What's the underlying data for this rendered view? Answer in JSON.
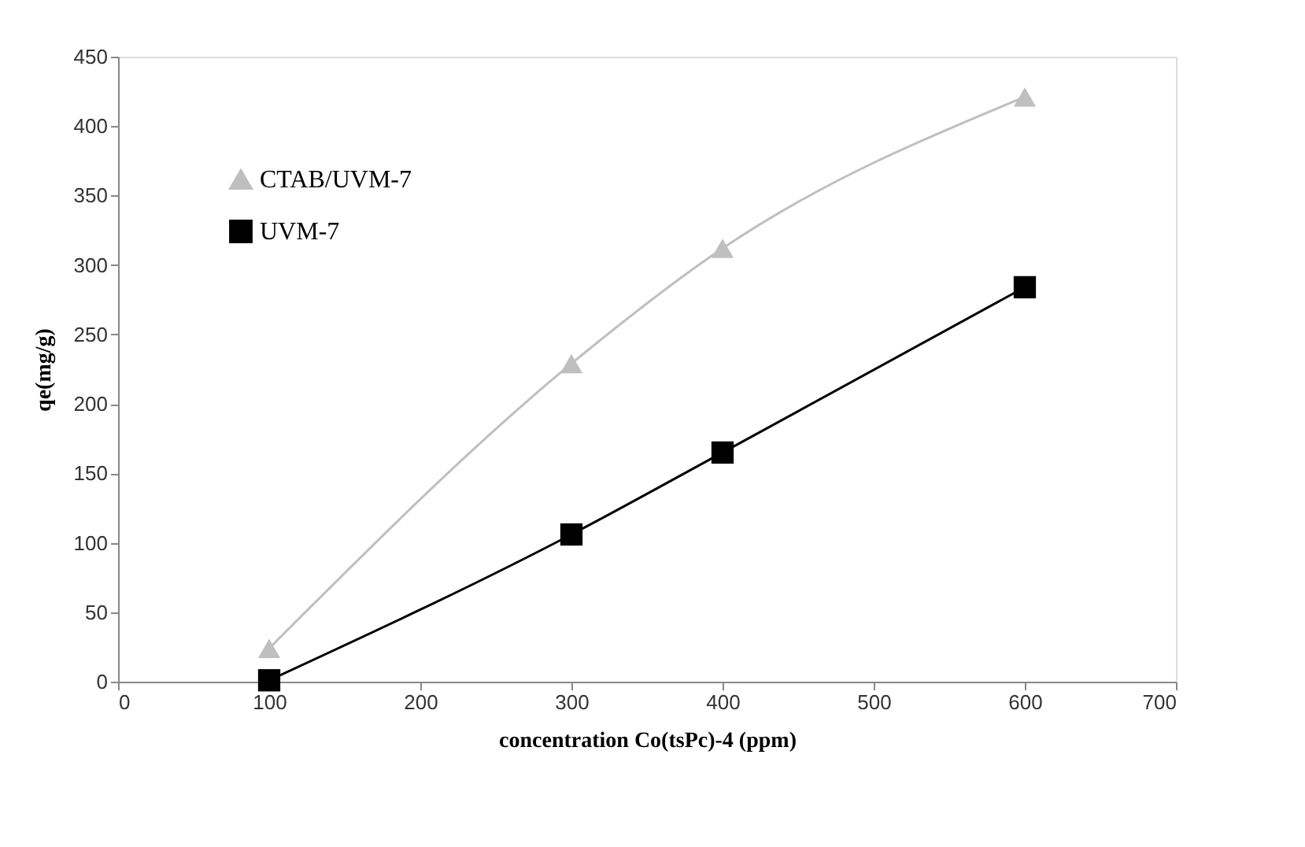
{
  "chart_data": {
    "type": "line",
    "xlabel": "concentration  Co(tsPc)-4 (ppm)",
    "ylabel": "qe(mg/g)",
    "xlim": [
      0,
      700
    ],
    "xticks": [
      0,
      100,
      200,
      300,
      400,
      500,
      600,
      700
    ],
    "ylim": [
      0,
      450
    ],
    "yticks": [
      0,
      50,
      100,
      150,
      200,
      250,
      300,
      350,
      400,
      450
    ],
    "grid": false,
    "legend": "top left",
    "series": [
      {
        "name": "CTAB/UVM-7",
        "color": "#bfbfbf",
        "marker": "triangle",
        "x": [
          100,
          300,
          400,
          600
        ],
        "values": [
          24,
          229,
          312,
          421
        ]
      },
      {
        "name": "UVM-7",
        "color": "#000000",
        "marker": "square",
        "x": [
          100,
          300,
          400,
          600
        ],
        "values": [
          1,
          106,
          165,
          284
        ]
      }
    ]
  }
}
